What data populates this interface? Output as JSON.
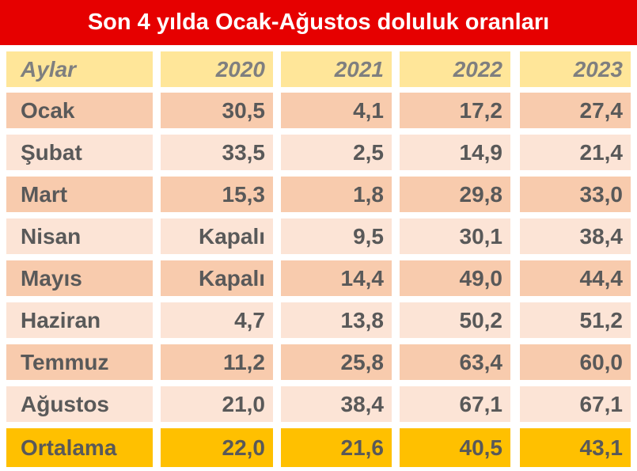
{
  "title": "Son 4 yılda Ocak-Ağustos doluluk oranları",
  "table": {
    "header": [
      "Aylar",
      "2020",
      "2021",
      "2022",
      "2023"
    ],
    "rows": [
      [
        "Ocak",
        "30,5",
        "4,1",
        "17,2",
        "27,4"
      ],
      [
        "Şubat",
        "33,5",
        "2,5",
        "14,9",
        "21,4"
      ],
      [
        "Mart",
        "15,3",
        "1,8",
        "29,8",
        "33,0"
      ],
      [
        "Nisan",
        "Kapalı",
        "9,5",
        "30,1",
        "38,4"
      ],
      [
        "Mayıs",
        "Kapalı",
        "14,4",
        "49,0",
        "44,4"
      ],
      [
        "Haziran",
        "4,7",
        "13,8",
        "50,2",
        "51,2"
      ],
      [
        "Temmuz",
        "11,2",
        "25,8",
        "63,4",
        "60,0"
      ],
      [
        "Ağustos",
        "21,0",
        "38,4",
        "67,1",
        "67,1"
      ]
    ],
    "footer": [
      "Ortalama",
      "22,0",
      "21,6",
      "40,5",
      "43,1"
    ]
  }
}
